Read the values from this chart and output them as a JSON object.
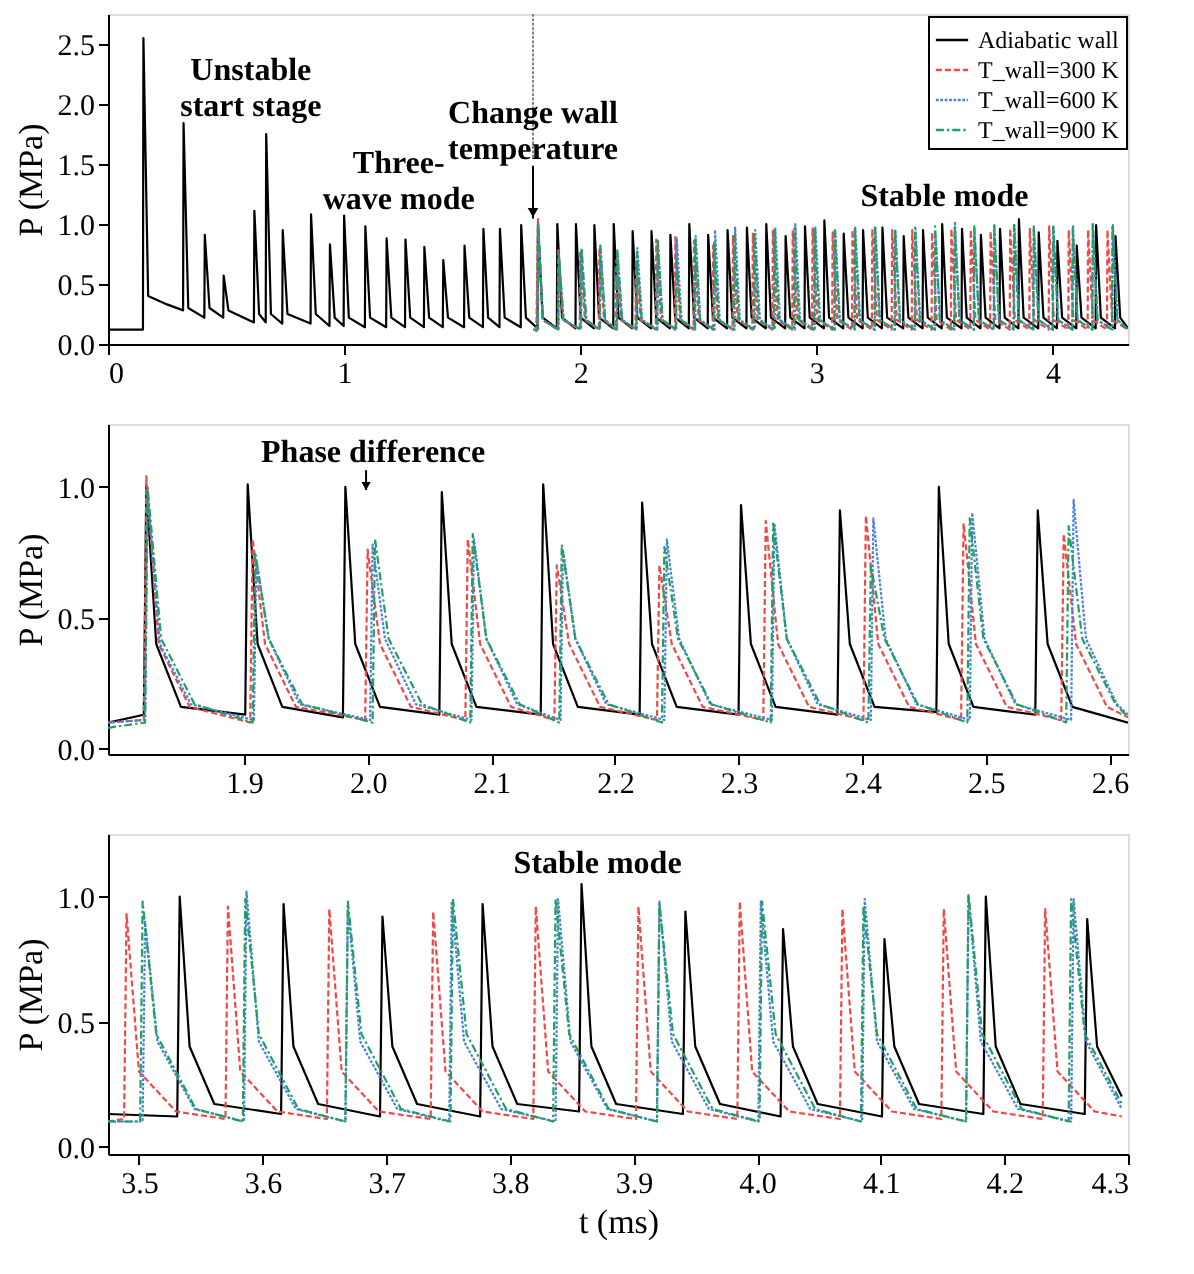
{
  "chart_data": [
    {
      "type": "line",
      "ylabel": "P (MPa)",
      "xlim": [
        0,
        4.32
      ],
      "ylim": [
        0,
        2.75
      ],
      "xticks": [
        0,
        1,
        2,
        3,
        4
      ],
      "yticks": [
        {
          "value": 0,
          "label": "0.0"
        },
        {
          "value": 0.5,
          "label": "0.5"
        },
        {
          "value": 1,
          "label": "1.0"
        },
        {
          "value": 1.5,
          "label": "1.5"
        },
        {
          "value": 2,
          "label": "2.0"
        },
        {
          "value": 2.5,
          "label": "2.5"
        }
      ],
      "legend": "top right",
      "annotations": [
        "Unstable\nstart stage",
        "Three-\nwave mode",
        "Stable mode"
      ],
      "ref_lines": [
        {
          "axis": "x",
          "value": 1.8,
          "label": "Change wall\ntemperature",
          "color": "#808080",
          "line_style": "dotted"
        }
      ],
      "series": [
        {
          "name": "Adiabatic wall",
          "color": "#000000",
          "line_style": "solid",
          "x": [
            0,
            0.148,
            0.15,
            0.17,
            0.25,
            0.318,
            0.32,
            0.34,
            0.408,
            0.41,
            0.43,
            0.488,
            0.49,
            0.51,
            0.618,
            0.62,
            0.64,
            0.668,
            0.67,
            0.69,
            0.738,
            0.74,
            0.76,
            0.858,
            0.86,
            0.88,
            0.938,
            0.94,
            0.96,
            0.998,
            1.0,
            1.02,
            1.088,
            1.09,
            1.11,
            1.178,
            1.18,
            1.2,
            1.258,
            1.26,
            1.28,
            1.338,
            1.34,
            1.36,
            1.418,
            1.42,
            1.44,
            1.508,
            1.51,
            1.53,
            1.588,
            1.59,
            1.61,
            1.658,
            1.66,
            1.68,
            1.748,
            1.75,
            1.77,
            1.819,
            1.821,
            1.841,
            1.901,
            1.903,
            1.923,
            1.98,
            1.982,
            2.002,
            2.058,
            2.06,
            2.08,
            2.14,
            2.142,
            2.162,
            2.22,
            2.222,
            2.242,
            2.3,
            2.302,
            2.322,
            2.38,
            2.382,
            2.402,
            2.46,
            2.462,
            2.482,
            2.54,
            2.542,
            2.562,
            2.622,
            2.624,
            2.644,
            2.704,
            2.706,
            2.726,
            2.786,
            2.788,
            2.808,
            2.868,
            2.87,
            2.89,
            2.95,
            2.952,
            2.972,
            3.032,
            3.034,
            3.054,
            3.114,
            3.116,
            3.136,
            3.196,
            3.198,
            3.218,
            3.278,
            3.28,
            3.3,
            3.368,
            3.37,
            3.39,
            3.45,
            3.452,
            3.472,
            3.531,
            3.533,
            3.553,
            3.615,
            3.617,
            3.637,
            3.695,
            3.697,
            3.717,
            3.776,
            3.778,
            3.798,
            3.856,
            3.858,
            3.878,
            3.94,
            3.942,
            3.962,
            4.019,
            4.021,
            4.041,
            4.101,
            4.103,
            4.123,
            4.183,
            4.185,
            4.205,
            4.265,
            4.267,
            4.287,
            4.32
          ],
          "values": [
            0.12,
            0.12,
            2.55,
            0.4,
            0.33,
            0.28,
            1.84,
            0.3,
            0.22,
            0.91,
            0.3,
            0.22,
            0.57,
            0.28,
            0.18,
            1.11,
            0.25,
            0.18,
            1.75,
            0.25,
            0.17,
            0.95,
            0.25,
            0.17,
            1.08,
            0.25,
            0.15,
            0.83,
            0.22,
            0.15,
            1.07,
            0.22,
            0.14,
            0.98,
            0.22,
            0.14,
            0.88,
            0.22,
            0.14,
            0.87,
            0.22,
            0.14,
            0.81,
            0.22,
            0.14,
            0.7,
            0.22,
            0.14,
            0.82,
            0.22,
            0.14,
            0.96,
            0.22,
            0.14,
            0.96,
            0.22,
            0.14,
            0.99,
            0.22,
            0.13,
            1.0,
            0.22,
            0.13,
            1.0,
            0.22,
            0.13,
            1.0,
            0.22,
            0.13,
            0.99,
            0.22,
            0.13,
            1.0,
            0.22,
            0.13,
            0.94,
            0.22,
            0.13,
            0.94,
            0.22,
            0.13,
            0.91,
            0.22,
            0.13,
            1.0,
            0.22,
            0.13,
            0.91,
            0.22,
            0.13,
            0.95,
            0.22,
            0.13,
            0.97,
            0.22,
            0.13,
            1.0,
            0.22,
            0.13,
            0.9,
            0.22,
            0.13,
            0.98,
            0.22,
            0.13,
            1.03,
            0.22,
            0.13,
            0.92,
            0.22,
            0.13,
            0.95,
            0.22,
            0.13,
            0.97,
            0.22,
            0.13,
            0.9,
            0.22,
            0.13,
            0.95,
            0.22,
            0.13,
            1.0,
            0.22,
            0.13,
            0.96,
            0.22,
            0.13,
            0.91,
            0.22,
            0.13,
            0.96,
            0.22,
            0.13,
            1.04,
            0.22,
            0.13,
            0.93,
            0.22,
            0.13,
            0.86,
            0.22,
            0.13,
            0.82,
            0.22,
            0.13,
            0.99,
            0.22,
            0.13,
            0.9,
            0.22,
            0.13
          ]
        },
        {
          "name": "T_wall=300 K",
          "color": "#f04848",
          "line_style": "dashed",
          "x": [
            1.814,
            1.821,
            1.841,
            1.905,
            1.907,
            1.927,
            1.998,
            2.0,
            2.02,
            2.079,
            2.081,
            2.101,
            2.151,
            2.153,
            2.173,
            2.234,
            2.236,
            2.256,
            2.32,
            2.322,
            2.342,
            2.401,
            2.403,
            2.423,
            2.48,
            2.482,
            2.502,
            2.561,
            2.563,
            2.583,
            2.645,
            2.647,
            2.667,
            2.729,
            2.731,
            2.751,
            2.814,
            2.816,
            2.836,
            2.898,
            2.9,
            2.92,
            2.982,
            2.984,
            3.004,
            3.067,
            3.069,
            3.089,
            3.151,
            3.153,
            3.173,
            3.235,
            3.237,
            3.257,
            3.319,
            3.321,
            3.341,
            3.404,
            3.406,
            3.426,
            3.488,
            3.49,
            3.51,
            3.57,
            3.572,
            3.592,
            3.652,
            3.654,
            3.674,
            3.736,
            3.738,
            3.758,
            3.819,
            3.821,
            3.841,
            3.902,
            3.904,
            3.924,
            3.984,
            3.986,
            4.006,
            4.067,
            4.069,
            4.089,
            4.149,
            4.151,
            4.171,
            4.231,
            4.233,
            4.253,
            4.32
          ],
          "values": [
            0.1,
            1.04,
            0.2,
            0.12,
            0.8,
            0.2,
            0.12,
            0.76,
            0.2,
            0.12,
            0.8,
            0.2,
            0.12,
            0.7,
            0.2,
            0.12,
            0.7,
            0.2,
            0.12,
            0.87,
            0.2,
            0.12,
            0.89,
            0.2,
            0.12,
            0.86,
            0.2,
            0.12,
            0.82,
            0.2,
            0.12,
            0.9,
            0.2,
            0.12,
            0.92,
            0.2,
            0.12,
            0.95,
            0.2,
            0.12,
            0.95,
            0.2,
            0.12,
            0.97,
            0.2,
            0.12,
            0.93,
            0.2,
            0.12,
            0.95,
            0.2,
            0.12,
            0.96,
            0.2,
            0.12,
            0.95,
            0.2,
            0.12,
            0.95,
            0.2,
            0.12,
            0.93,
            0.2,
            0.12,
            0.96,
            0.2,
            0.12,
            0.95,
            0.2,
            0.12,
            0.94,
            0.2,
            0.12,
            0.96,
            0.2,
            0.12,
            0.96,
            0.2,
            0.12,
            0.98,
            0.2,
            0.12,
            0.95,
            0.2,
            0.12,
            0.95,
            0.2,
            0.12,
            0.95,
            0.2,
            0.12
          ]
        },
        {
          "name": "T_wall=600 K",
          "color": "#4a80e0",
          "line_style": "dotted",
          "x": [
            1.82,
            1.822,
            1.842,
            1.908,
            1.91,
            1.93,
            2.002,
            2.004,
            2.024,
            2.084,
            2.086,
            2.106,
            2.156,
            2.158,
            2.178,
            2.24,
            2.242,
            2.262,
            2.327,
            2.329,
            2.349,
            2.407,
            2.409,
            2.429,
            2.487,
            2.489,
            2.509,
            2.569,
            2.571,
            2.591,
            2.654,
            2.656,
            2.676,
            2.739,
            2.741,
            2.761,
            2.824,
            2.826,
            2.846,
            2.909,
            2.911,
            2.931,
            2.994,
            2.996,
            3.016,
            3.078,
            3.08,
            3.1,
            3.163,
            3.165,
            3.185,
            3.248,
            3.25,
            3.27,
            3.333,
            3.335,
            3.355,
            3.418,
            3.42,
            3.44,
            3.503,
            3.505,
            3.525,
            3.585,
            3.587,
            3.607,
            3.667,
            3.669,
            3.689,
            3.751,
            3.753,
            3.773,
            3.837,
            3.839,
            3.859,
            3.919,
            3.921,
            3.941,
            4.001,
            4.003,
            4.023,
            4.085,
            4.087,
            4.107,
            4.169,
            4.171,
            4.191,
            4.254,
            4.256,
            4.276,
            4.32
          ],
          "values": [
            0.12,
            0.98,
            0.2,
            0.12,
            0.72,
            0.2,
            0.12,
            0.78,
            0.2,
            0.12,
            0.8,
            0.2,
            0.12,
            0.76,
            0.2,
            0.12,
            0.8,
            0.2,
            0.12,
            0.86,
            0.2,
            0.12,
            0.88,
            0.2,
            0.12,
            0.9,
            0.2,
            0.12,
            0.95,
            0.2,
            0.12,
            0.97,
            0.2,
            0.12,
            0.95,
            0.2,
            0.12,
            0.97,
            0.2,
            0.12,
            1.0,
            0.2,
            0.12,
            0.97,
            0.2,
            0.12,
            0.95,
            0.2,
            0.12,
            0.97,
            0.2,
            0.12,
            0.98,
            0.2,
            0.12,
            0.95,
            0.2,
            0.12,
            0.96,
            0.2,
            0.12,
            0.9,
            0.2,
            0.12,
            1.02,
            0.2,
            0.12,
            0.96,
            0.2,
            0.12,
            0.98,
            0.2,
            0.12,
            0.99,
            0.2,
            0.12,
            0.98,
            0.2,
            0.12,
            0.98,
            0.2,
            0.12,
            0.99,
            0.2,
            0.12,
            1.0,
            0.2,
            0.12,
            0.99,
            0.2,
            0.12
          ]
        },
        {
          "name": "T_wall=900 K",
          "color": "#20a060",
          "line_style": "dashdot",
          "x": [
            1.8,
            1.82,
            1.822,
            1.842,
            1.907,
            1.909,
            1.929,
            2.004,
            2.006,
            2.026,
            2.083,
            2.085,
            2.105,
            2.155,
            2.157,
            2.177,
            2.238,
            2.24,
            2.26,
            2.326,
            2.328,
            2.348,
            2.405,
            2.407,
            2.427,
            2.485,
            2.487,
            2.507,
            2.565,
            2.567,
            2.587,
            2.65,
            2.652,
            2.672,
            2.735,
            2.737,
            2.757,
            2.82,
            2.822,
            2.842,
            2.905,
            2.907,
            2.927,
            2.99,
            2.992,
            3.012,
            3.076,
            3.078,
            3.098,
            3.161,
            3.163,
            3.183,
            3.246,
            3.248,
            3.268,
            3.331,
            3.333,
            3.353,
            3.416,
            3.418,
            3.438,
            3.501,
            3.503,
            3.523,
            3.584,
            3.586,
            3.606,
            3.667,
            3.669,
            3.689,
            3.752,
            3.754,
            3.774,
            3.835,
            3.837,
            3.857,
            3.919,
            3.921,
            3.941,
            4.002,
            4.004,
            4.024,
            4.084,
            4.086,
            4.106,
            4.169,
            4.171,
            4.191,
            4.252,
            4.254,
            4.274,
            4.32
          ],
          "values": [
            0.12,
            0.12,
            1.0,
            0.2,
            0.12,
            0.75,
            0.2,
            0.12,
            0.8,
            0.2,
            0.12,
            0.82,
            0.2,
            0.12,
            0.78,
            0.2,
            0.12,
            0.77,
            0.2,
            0.12,
            0.86,
            0.2,
            0.12,
            0.7,
            0.2,
            0.12,
            0.88,
            0.2,
            0.12,
            0.85,
            0.2,
            0.12,
            0.9,
            0.2,
            0.12,
            0.93,
            0.2,
            0.12,
            0.95,
            0.2,
            0.12,
            0.96,
            0.2,
            0.12,
            0.97,
            0.2,
            0.12,
            0.95,
            0.2,
            0.12,
            0.96,
            0.2,
            0.12,
            0.97,
            0.2,
            0.12,
            0.96,
            0.2,
            0.12,
            0.97,
            0.2,
            0.12,
            0.98,
            0.2,
            0.12,
            0.99,
            0.2,
            0.12,
            0.98,
            0.2,
            0.12,
            0.99,
            0.2,
            0.12,
            0.99,
            0.2,
            0.12,
            0.97,
            0.2,
            0.12,
            0.98,
            0.2,
            0.12,
            0.96,
            0.2,
            0.12,
            1.01,
            0.2,
            0.12,
            0.99,
            0.2,
            0.12
          ]
        }
      ]
    },
    {
      "type": "line",
      "ylabel": "P (MPa)",
      "xlim": [
        1.79,
        2.615
      ],
      "ylim": [
        -0.02,
        1.24
      ],
      "xticks": [
        1.9,
        {
          "value": 2,
          "label": "2.0"
        },
        2.1,
        2.2,
        2.3,
        2.4,
        2.5,
        2.6
      ],
      "yticks": [
        {
          "value": 0,
          "label": "0.0"
        },
        0.5,
        {
          "value": 1,
          "label": "1.0"
        }
      ],
      "annotations": [
        "Phase difference"
      ],
      "series": [
        {
          "color": "#000000",
          "line_style": "solid",
          "x": [
            1.79,
            1.819,
            1.821,
            1.829,
            1.849,
            1.901,
            1.903,
            1.911,
            1.931,
            1.98,
            1.982,
            1.99,
            2.01,
            2.058,
            2.06,
            2.068,
            2.088,
            2.14,
            2.142,
            2.15,
            2.17,
            2.22,
            2.222,
            2.23,
            2.25,
            2.3,
            2.302,
            2.31,
            2.33,
            2.38,
            2.382,
            2.39,
            2.41,
            2.46,
            2.462,
            2.47,
            2.49,
            2.54,
            2.542,
            2.55,
            2.57,
            2.615
          ],
          "values": [
            0.1,
            0.13,
            1.0,
            0.4,
            0.16,
            0.13,
            1.01,
            0.4,
            0.16,
            0.12,
            1.0,
            0.4,
            0.16,
            0.13,
            0.98,
            0.4,
            0.16,
            0.13,
            1.01,
            0.4,
            0.16,
            0.13,
            0.94,
            0.4,
            0.16,
            0.13,
            0.93,
            0.4,
            0.16,
            0.13,
            0.91,
            0.4,
            0.16,
            0.14,
            1.0,
            0.4,
            0.16,
            0.13,
            0.91,
            0.4,
            0.16,
            0.1
          ]
        },
        {
          "color": "#f04848",
          "line_style": "dashed",
          "x": [
            1.79,
            1.819,
            1.821,
            1.831,
            1.856,
            1.905,
            1.907,
            1.917,
            1.942,
            1.998,
            2.0,
            2.01,
            2.035,
            2.079,
            2.081,
            2.091,
            2.116,
            2.151,
            2.153,
            2.163,
            2.188,
            2.234,
            2.236,
            2.246,
            2.271,
            2.32,
            2.322,
            2.332,
            2.357,
            2.401,
            2.403,
            2.413,
            2.438,
            2.48,
            2.482,
            2.492,
            2.517,
            2.561,
            2.563,
            2.573,
            2.598,
            2.615
          ],
          "values": [
            0.1,
            0.11,
            1.04,
            0.4,
            0.16,
            0.1,
            0.8,
            0.4,
            0.16,
            0.11,
            0.76,
            0.4,
            0.16,
            0.11,
            0.8,
            0.4,
            0.16,
            0.11,
            0.7,
            0.4,
            0.16,
            0.11,
            0.7,
            0.4,
            0.16,
            0.11,
            0.87,
            0.4,
            0.16,
            0.11,
            0.89,
            0.4,
            0.16,
            0.11,
            0.86,
            0.4,
            0.16,
            0.11,
            0.82,
            0.4,
            0.16,
            0.12
          ]
        },
        {
          "color": "#4a80e0",
          "line_style": "dotted",
          "x": [
            1.79,
            1.82,
            1.822,
            1.832,
            1.857,
            1.908,
            1.91,
            1.92,
            1.945,
            2.002,
            2.004,
            2.014,
            2.039,
            2.084,
            2.086,
            2.096,
            2.121,
            2.156,
            2.158,
            2.168,
            2.193,
            2.24,
            2.242,
            2.252,
            2.277,
            2.327,
            2.329,
            2.339,
            2.364,
            2.407,
            2.409,
            2.419,
            2.444,
            2.487,
            2.489,
            2.499,
            2.524,
            2.569,
            2.571,
            2.581,
            2.606,
            2.615
          ],
          "values": [
            0.1,
            0.11,
            0.98,
            0.4,
            0.17,
            0.11,
            0.72,
            0.42,
            0.17,
            0.11,
            0.78,
            0.42,
            0.17,
            0.11,
            0.8,
            0.42,
            0.17,
            0.11,
            0.76,
            0.42,
            0.17,
            0.11,
            0.8,
            0.42,
            0.17,
            0.11,
            0.86,
            0.42,
            0.17,
            0.11,
            0.88,
            0.42,
            0.17,
            0.11,
            0.9,
            0.42,
            0.17,
            0.11,
            0.95,
            0.42,
            0.17,
            0.13
          ]
        },
        {
          "color": "#20a060",
          "line_style": "dashdot",
          "x": [
            1.79,
            1.82,
            1.822,
            1.833,
            1.86,
            1.907,
            1.909,
            1.92,
            1.947,
            2.004,
            2.006,
            2.017,
            2.044,
            2.083,
            2.085,
            2.096,
            2.123,
            2.155,
            2.157,
            2.168,
            2.195,
            2.238,
            2.24,
            2.251,
            2.278,
            2.326,
            2.328,
            2.339,
            2.366,
            2.405,
            2.407,
            2.418,
            2.445,
            2.485,
            2.487,
            2.498,
            2.525,
            2.565,
            2.567,
            2.578,
            2.605,
            2.615
          ],
          "values": [
            0.08,
            0.1,
            1.0,
            0.42,
            0.17,
            0.1,
            0.75,
            0.42,
            0.17,
            0.1,
            0.8,
            0.42,
            0.17,
            0.1,
            0.82,
            0.42,
            0.17,
            0.1,
            0.78,
            0.42,
            0.17,
            0.1,
            0.77,
            0.42,
            0.17,
            0.1,
            0.86,
            0.42,
            0.17,
            0.1,
            0.7,
            0.42,
            0.17,
            0.1,
            0.88,
            0.42,
            0.17,
            0.1,
            0.85,
            0.42,
            0.17,
            0.12
          ]
        }
      ]
    },
    {
      "type": "line",
      "xlabel": "t (ms)",
      "ylabel": "P (MPa)",
      "xlim": [
        3.475,
        4.3
      ],
      "ylim": [
        -0.03,
        1.25
      ],
      "xticks": [
        3.5,
        3.6,
        3.7,
        3.8,
        3.9,
        {
          "value": 4,
          "label": "4.0"
        },
        4.1,
        4.2,
        4.3
      ],
      "yticks": [
        {
          "value": 0,
          "label": "0.0"
        },
        0.5,
        {
          "value": 1,
          "label": "1.0"
        }
      ],
      "annotations": [
        "Stable mode"
      ],
      "series": [
        {
          "color": "#000000",
          "line_style": "solid",
          "x": [
            3.475,
            3.531,
            3.533,
            3.541,
            3.561,
            3.615,
            3.617,
            3.625,
            3.645,
            3.695,
            3.697,
            3.705,
            3.725,
            3.776,
            3.778,
            3.786,
            3.806,
            3.856,
            3.858,
            3.866,
            3.886,
            3.94,
            3.942,
            3.95,
            3.97,
            4.019,
            4.021,
            4.029,
            4.049,
            4.101,
            4.103,
            4.111,
            4.131,
            4.183,
            4.185,
            4.193,
            4.213,
            4.265,
            4.267,
            4.275,
            4.295
          ],
          "values": [
            0.13,
            0.12,
            1.0,
            0.4,
            0.17,
            0.13,
            0.97,
            0.4,
            0.17,
            0.12,
            0.92,
            0.4,
            0.17,
            0.12,
            0.97,
            0.4,
            0.17,
            0.14,
            1.05,
            0.4,
            0.17,
            0.13,
            0.94,
            0.4,
            0.17,
            0.12,
            0.87,
            0.4,
            0.17,
            0.12,
            0.83,
            0.4,
            0.17,
            0.13,
            1.0,
            0.4,
            0.17,
            0.13,
            0.91,
            0.4,
            0.2
          ]
        },
        {
          "color": "#f04848",
          "line_style": "dashed",
          "x": [
            3.475,
            3.488,
            3.49,
            3.5,
            3.53,
            3.57,
            3.572,
            3.582,
            3.612,
            3.652,
            3.654,
            3.664,
            3.694,
            3.736,
            3.738,
            3.748,
            3.778,
            3.819,
            3.821,
            3.831,
            3.861,
            3.902,
            3.904,
            3.914,
            3.944,
            3.984,
            3.986,
            3.996,
            4.026,
            4.067,
            4.069,
            4.079,
            4.109,
            4.149,
            4.151,
            4.161,
            4.191,
            4.231,
            4.233,
            4.243,
            4.273,
            4.295
          ],
          "values": [
            0.1,
            0.11,
            0.93,
            0.3,
            0.14,
            0.11,
            0.96,
            0.3,
            0.14,
            0.11,
            0.95,
            0.3,
            0.14,
            0.11,
            0.94,
            0.3,
            0.14,
            0.11,
            0.96,
            0.3,
            0.14,
            0.11,
            0.96,
            0.3,
            0.14,
            0.11,
            0.98,
            0.3,
            0.14,
            0.11,
            0.95,
            0.3,
            0.14,
            0.11,
            0.95,
            0.3,
            0.14,
            0.11,
            0.95,
            0.3,
            0.14,
            0.12
          ]
        },
        {
          "color": "#4a80e0",
          "line_style": "dotted",
          "x": [
            3.475,
            3.503,
            3.505,
            3.515,
            3.545,
            3.585,
            3.587,
            3.597,
            3.627,
            3.667,
            3.669,
            3.679,
            3.709,
            3.751,
            3.753,
            3.763,
            3.793,
            3.837,
            3.839,
            3.849,
            3.879,
            3.919,
            3.921,
            3.931,
            3.961,
            4.001,
            4.003,
            4.013,
            4.043,
            4.085,
            4.087,
            4.097,
            4.127,
            4.169,
            4.171,
            4.181,
            4.211,
            4.254,
            4.256,
            4.266,
            4.295
          ],
          "values": [
            0.1,
            0.1,
            0.9,
            0.42,
            0.15,
            0.1,
            1.02,
            0.42,
            0.15,
            0.1,
            0.96,
            0.42,
            0.15,
            0.1,
            0.98,
            0.42,
            0.15,
            0.1,
            0.99,
            0.42,
            0.15,
            0.1,
            0.98,
            0.42,
            0.15,
            0.1,
            0.98,
            0.42,
            0.15,
            0.1,
            0.99,
            0.42,
            0.15,
            0.1,
            1.0,
            0.42,
            0.15,
            0.1,
            0.99,
            0.42,
            0.15
          ]
        },
        {
          "color": "#20a060",
          "line_style": "dashdot",
          "x": [
            3.475,
            3.501,
            3.503,
            3.514,
            3.546,
            3.584,
            3.586,
            3.597,
            3.629,
            3.667,
            3.669,
            3.68,
            3.712,
            3.752,
            3.754,
            3.765,
            3.797,
            3.835,
            3.837,
            3.848,
            3.88,
            3.919,
            3.921,
            3.932,
            3.964,
            4.002,
            4.004,
            4.015,
            4.047,
            4.084,
            4.086,
            4.097,
            4.129,
            4.169,
            4.171,
            4.182,
            4.214,
            4.252,
            4.254,
            4.265,
            4.295
          ],
          "values": [
            0.1,
            0.1,
            0.98,
            0.45,
            0.15,
            0.1,
            0.99,
            0.45,
            0.15,
            0.1,
            0.98,
            0.45,
            0.15,
            0.1,
            0.99,
            0.45,
            0.15,
            0.1,
            0.99,
            0.45,
            0.15,
            0.1,
            0.97,
            0.45,
            0.15,
            0.1,
            0.98,
            0.45,
            0.15,
            0.1,
            0.96,
            0.45,
            0.15,
            0.1,
            1.01,
            0.45,
            0.15,
            0.1,
            0.99,
            0.45,
            0.17
          ]
        }
      ]
    }
  ]
}
